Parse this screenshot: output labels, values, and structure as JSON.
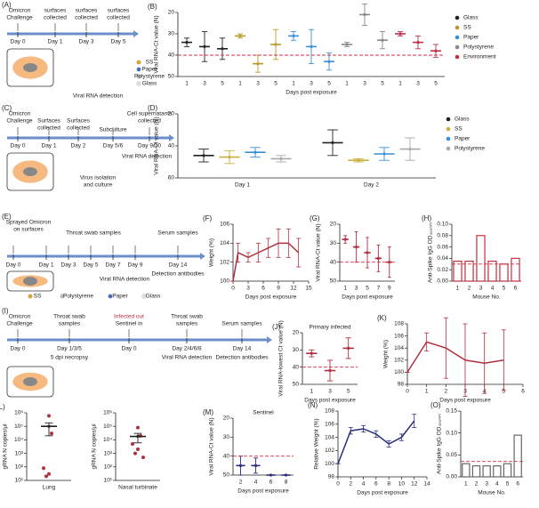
{
  "chart_data": [
    {
      "type": "dot",
      "panel": "(B)",
      "y_label": "Viral RNA-Ct value (N)",
      "x_label": "Days post exposure",
      "categories": [
        "1",
        "3",
        "5",
        "1",
        "3",
        "5",
        "1",
        "3",
        "5",
        "1",
        "3",
        "5",
        "1",
        "3",
        "5"
      ],
      "ylim": [
        20,
        50
      ],
      "invert": true,
      "yticks": [
        20,
        30,
        40,
        50
      ],
      "threshold": 40,
      "legend": "right",
      "series": [
        {
          "name": "Glass",
          "color": "#222222",
          "values": [
            34,
            36,
            37,
            null,
            null,
            null,
            null,
            null,
            null,
            null,
            null,
            null,
            null,
            null,
            null
          ],
          "errors": [
            2,
            7,
            5,
            null,
            null,
            null,
            null,
            null,
            null,
            null,
            null,
            null,
            null,
            null,
            null
          ]
        },
        {
          "name": "SS",
          "color": "#b89a2a",
          "values": [
            null,
            null,
            null,
            31,
            44,
            35,
            null,
            null,
            null,
            null,
            null,
            null,
            null,
            null,
            null
          ],
          "errors": [
            null,
            null,
            null,
            1,
            4,
            7,
            null,
            null,
            null,
            null,
            null,
            null,
            null,
            null,
            null
          ]
        },
        {
          "name": "Paper",
          "color": "#3a8fd6",
          "values": [
            null,
            null,
            null,
            null,
            null,
            null,
            31,
            36,
            43,
            null,
            null,
            null,
            null,
            null,
            null
          ],
          "errors": [
            null,
            null,
            null,
            null,
            null,
            null,
            2,
            8,
            4,
            null,
            null,
            null,
            null,
            null,
            null
          ]
        },
        {
          "name": "Polystyrene",
          "color": "#888888",
          "values": [
            null,
            null,
            null,
            null,
            null,
            null,
            null,
            null,
            null,
            35,
            21,
            33,
            null,
            null,
            null
          ],
          "errors": [
            null,
            null,
            null,
            null,
            null,
            null,
            null,
            null,
            null,
            1,
            5,
            4,
            null,
            null,
            null
          ]
        },
        {
          "name": "Environment",
          "color": "#c0304a",
          "values": [
            null,
            null,
            null,
            null,
            null,
            null,
            null,
            null,
            null,
            null,
            null,
            null,
            30,
            34,
            38
          ],
          "errors": [
            null,
            null,
            null,
            null,
            null,
            null,
            null,
            null,
            null,
            null,
            null,
            null,
            1,
            3,
            3
          ]
        }
      ]
    },
    {
      "type": "dot",
      "panel": "(D)",
      "y_label": "Viral RNA-Ct value (N)",
      "categories": [
        "Day 1",
        "Day 2"
      ],
      "ylim": [
        20,
        60
      ],
      "invert": true,
      "yticks": [
        20,
        40,
        60
      ],
      "dodge": true,
      "legend": "right",
      "series": [
        {
          "name": "Glass",
          "color": "#222222",
          "values": [
            46,
            38
          ],
          "errors": [
            4,
            8
          ]
        },
        {
          "name": "SS",
          "color": "#c8b040",
          "values": [
            47,
            49
          ],
          "errors": [
            4,
            1
          ]
        },
        {
          "name": "Paper",
          "color": "#3a8fd6",
          "values": [
            44,
            45
          ],
          "errors": [
            3,
            4
          ]
        },
        {
          "name": "Polystyrene",
          "color": "#aaaaaa",
          "values": [
            48,
            42
          ],
          "errors": [
            2,
            7
          ]
        }
      ]
    },
    {
      "type": "line",
      "panel": "(F)",
      "y_label": "Weight (%)",
      "x_label": "Days post exposure",
      "x": [
        0,
        1,
        3,
        5,
        7,
        9,
        11,
        13
      ],
      "xlim": [
        0,
        15
      ],
      "xticks": [
        0,
        3,
        6,
        9,
        12,
        15
      ],
      "ylim": [
        100,
        106
      ],
      "yticks": [
        100,
        102,
        104,
        106
      ],
      "series": [
        {
          "color": "#b03040",
          "values": [
            100,
            103,
            102.5,
            103,
            103.5,
            104,
            104,
            103
          ],
          "errors": [
            0,
            1,
            0.5,
            1,
            1,
            1.5,
            1.5,
            1.5
          ]
        }
      ]
    },
    {
      "type": "dot",
      "panel": "(G)",
      "y_label": "Viral RNA-Ct value (N)",
      "x_label": "Days post exposure",
      "categories": [
        "1",
        "3",
        "5",
        "7",
        "9"
      ],
      "ylim": [
        20,
        50
      ],
      "invert": true,
      "yticks": [
        20,
        30,
        40,
        50
      ],
      "threshold": 40,
      "series": [
        {
          "color": "#b03040",
          "values": [
            28,
            32,
            35,
            38,
            40
          ],
          "errors": [
            2,
            8,
            8,
            7,
            8
          ]
        }
      ]
    },
    {
      "type": "bar",
      "panel": "(H)",
      "y_label": "Anti-Spike IgG OD₄₅₀ₙₘ",
      "x_label": "Mouse No.",
      "categories": [
        "1",
        "2",
        "3",
        "4",
        "5",
        "6"
      ],
      "values": [
        0.035,
        0.035,
        0.08,
        0.035,
        0.03,
        0.04
      ],
      "color": "#c03040",
      "ylim": [
        0,
        0.1
      ],
      "yticks": [
        {
          "value": 0,
          "label": "0.00"
        },
        0.02,
        0.04,
        0.06,
        0.08,
        {
          "value": 0.1,
          "label": "0.10"
        }
      ],
      "threshold": 0.03
    },
    {
      "type": "dot",
      "panel": "(J)",
      "title": "Primary infected",
      "y_label": "Viral RNA-lowest Ct value (N)",
      "x_label": "Days post exposure",
      "categories": [
        "1",
        "3",
        "5"
      ],
      "ylim": [
        20,
        50
      ],
      "invert": true,
      "yticks": [
        20,
        30,
        40,
        50
      ],
      "threshold": 40,
      "series": [
        {
          "color": "#b03040",
          "values": [
            32,
            42,
            29
          ],
          "errors": [
            2,
            6,
            6
          ]
        }
      ]
    },
    {
      "type": "line",
      "panel": "(K)",
      "y_label": "Weight (%)",
      "x_label": "Days post exposure",
      "x": [
        0,
        1,
        2,
        3,
        4,
        5
      ],
      "xlim": [
        0,
        6
      ],
      "xticks": [
        0,
        1,
        2,
        3,
        4,
        5,
        6
      ],
      "ylim": [
        98,
        108
      ],
      "yticks": [
        98,
        100,
        102,
        104,
        106,
        108
      ],
      "series": [
        {
          "color": "#b03040",
          "values": [
            100,
            105,
            104,
            102,
            101.5,
            102
          ],
          "errors": [
            0,
            1.5,
            5,
            6,
            5,
            5
          ]
        }
      ]
    },
    {
      "type": "dot",
      "panel": "(L)",
      "y_label": "gRNA N copies/μl",
      "categories": [
        "Lung"
      ],
      "log": true,
      "ylim": [
        10,
        1000000
      ],
      "yticks": [
        {
          "value": 10,
          "label": "10¹"
        },
        {
          "value": 100,
          "label": "10²"
        },
        {
          "value": 1000,
          "label": "10³"
        },
        {
          "value": 10000,
          "label": "10⁴"
        },
        {
          "value": 100000,
          "label": "10⁵"
        },
        {
          "value": 1000000,
          "label": "10⁶"
        }
      ],
      "series": [
        {
          "color": "#222222",
          "values": [
            100000
          ],
          "errors": [
            80000
          ],
          "points": [
            [
              600000,
              30000,
              80,
              30,
              20
            ]
          ]
        }
      ]
    },
    {
      "type": "dot",
      "y_label": "gRNA N copies/μl",
      "categories": [
        "Nasal turbinate"
      ],
      "log": true,
      "ylim": [
        10,
        1000000
      ],
      "yticks": [
        {
          "value": 10,
          "label": "10¹"
        },
        {
          "value": 100,
          "label": "10²"
        },
        {
          "value": 1000,
          "label": "10³"
        },
        {
          "value": 10000,
          "label": "10⁴"
        },
        {
          "value": 100000,
          "label": "10⁵"
        },
        {
          "value": 1000000,
          "label": "10⁶"
        }
      ],
      "series": [
        {
          "color": "#222222",
          "values": [
            18000
          ],
          "errors": [
            12000
          ],
          "points": [
            [
              80000,
              20000,
              5000,
              2000,
              1000,
              500
            ]
          ]
        }
      ]
    },
    {
      "type": "dot",
      "panel": "(M)",
      "title": "Sentinel",
      "y_label": "Viral RNA-Ct value (N)",
      "x_label": "Days post exposure",
      "categories": [
        "2",
        "4",
        "6",
        "8"
      ],
      "ylim": [
        20,
        50
      ],
      "invert": true,
      "yticks": [
        20,
        30,
        40,
        50
      ],
      "threshold": 40,
      "series": [
        {
          "color": "#2a2f80",
          "values": [
            45,
            45,
            50,
            50
          ],
          "errors": [
            5,
            4,
            0,
            0
          ]
        }
      ]
    },
    {
      "type": "line",
      "panel": "(N)",
      "y_label": "Relative Weight (%)",
      "x_label": "Days post exposure",
      "x": [
        0,
        2,
        4,
        6,
        8,
        10,
        12
      ],
      "xlim": [
        0,
        14
      ],
      "xticks": [
        0,
        2,
        4,
        6,
        8,
        10,
        12,
        14
      ],
      "ylim": [
        98,
        108
      ],
      "yticks": [
        98,
        100,
        102,
        104,
        106,
        108
      ],
      "series": [
        {
          "color": "#2a2f80",
          "values": [
            100,
            105,
            105.3,
            104.5,
            103,
            104,
            106.5
          ],
          "errors": [
            0,
            0.5,
            0.5,
            0.5,
            0.5,
            0.5,
            1
          ]
        }
      ]
    },
    {
      "type": "bar",
      "panel": "(O)",
      "y_label": "Anti-Spike IgG OD₄₅₀ₙₘ",
      "x_label": "Mouse No.",
      "categories": [
        "1",
        "2",
        "3",
        "4",
        "5",
        "6"
      ],
      "values": [
        0.03,
        0.025,
        0.025,
        0.025,
        0.03,
        0.095
      ],
      "color": "#666666",
      "ylim": [
        0,
        0.15
      ],
      "yticks": [
        {
          "value": 0,
          "label": "0.00"
        },
        0.05,
        {
          "value": 0.1,
          "label": "0.10"
        },
        0.15
      ],
      "threshold": 0.035
    }
  ],
  "diagrams": [
    {
      "panel": "(A)",
      "items": [
        "Omicron",
        "Challenge",
        "surfaces",
        "collected",
        "surfaces",
        "collected",
        "surfaces",
        "collected",
        "Day 0",
        "Day 1",
        "Day 3",
        "Day 5",
        "SS",
        "Paper",
        "Polystyrene",
        "Glass",
        "Viral RNA detection"
      ]
    },
    {
      "panel": "(C)",
      "items": [
        "Omicron",
        "Challenge",
        "Surfaces",
        "collected",
        "Surfaces",
        "collected",
        "Subculture",
        "Cell supernatants",
        "collected",
        "Day 0",
        "Day 1",
        "Day 2",
        "Day 5/6",
        "Day 9/10",
        "Virus isolation",
        "and culture",
        "Viral RNA detection"
      ]
    },
    {
      "panel": "(E)",
      "items": [
        "Sprayed Omicron",
        "on surfaces",
        "Throat swab samples",
        "Serum samples",
        "Day 0",
        "Day 1",
        "Day 3",
        "Day 5",
        "Day 7",
        "Day 9",
        "Day 14",
        "Viral RNA detection",
        "Detection antibodies",
        "SS",
        "Polystyrene",
        "Paper",
        "Glass"
      ]
    },
    {
      "panel": "(I)",
      "items": [
        "Omicron",
        "Challenge",
        "Throat swab",
        "samples",
        "Infected out",
        "Sentinel in",
        "Throat swab",
        "samples",
        "Serum samples",
        "Day 0",
        "Day 1/3/5",
        "Day 0",
        "Day 2/4/6/8",
        "Day 14",
        "5 dpi necropsy",
        "Viral RNA detection",
        "Detection antibodies"
      ]
    }
  ]
}
